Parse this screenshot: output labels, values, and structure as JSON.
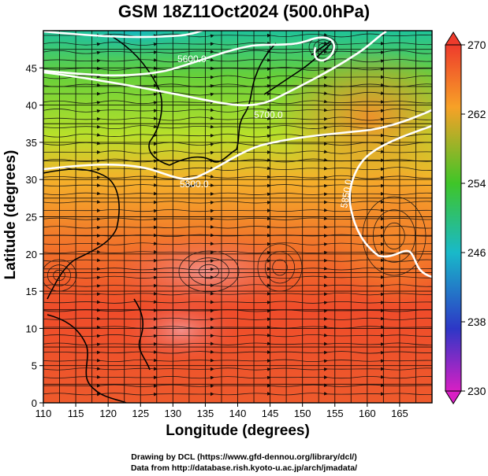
{
  "title": "GSM 18Z11Oct2024 (500.0hPa)",
  "xlabel": "Longitude (degrees)",
  "ylabel": "Latitude  (degrees)",
  "credits": {
    "drawing": "Drawing by DCL (https://www.gfd-dennou.org/library/dcl/)",
    "data": "Data from http://database.rish.kyoto-u.ac.jp/arch/jmadata/"
  },
  "map": {
    "x_ticks": [
      "110",
      "115",
      "120",
      "125",
      "130",
      "135",
      "140",
      "145",
      "150",
      "155",
      "160",
      "165"
    ],
    "y_ticks": [
      "0",
      "5",
      "10",
      "15",
      "20",
      "25",
      "30",
      "35",
      "40",
      "45"
    ],
    "xlim": [
      110,
      170
    ],
    "ylim": [
      0,
      50
    ],
    "contour_labels": [
      "5600.0",
      "5700.0",
      "5800.0",
      "5850.0"
    ]
  },
  "colorbar": {
    "ticks": [
      "270",
      "262",
      "254",
      "246",
      "238",
      "230"
    ],
    "colors": [
      "#ee3b2c",
      "#f7a127",
      "#3fc528",
      "#19b9c9",
      "#2d37c6",
      "#d81fc4"
    ]
  }
}
